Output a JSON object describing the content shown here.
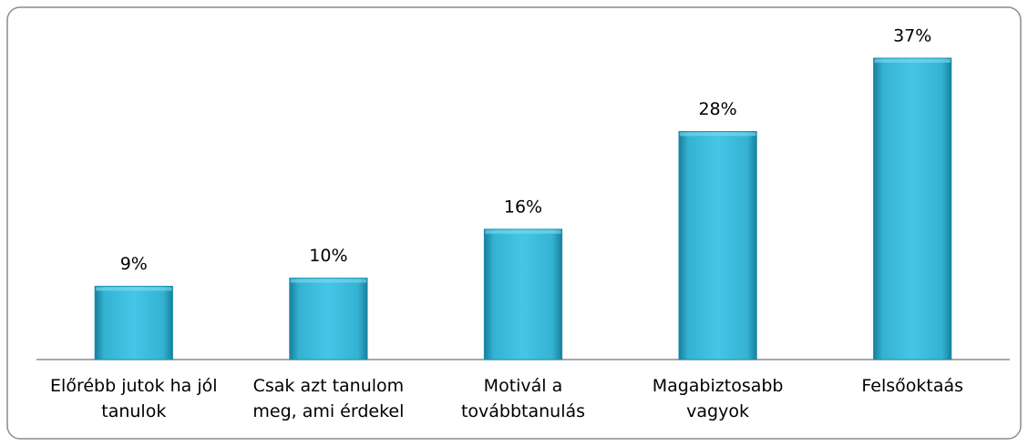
{
  "chart_data": {
    "type": "bar",
    "categories": [
      "Előrébb jutok ha jól tanulok",
      "Csak azt tanulom meg, ami érdekel",
      "Motivál a továbbtanulás",
      "Magabiztosabb vagyok",
      "Felsőoktaás"
    ],
    "values": [
      9,
      10,
      16,
      28,
      37
    ],
    "value_labels": [
      "9%",
      "10%",
      "16%",
      "28%",
      "37%"
    ],
    "color": "#3fbfdf",
    "ylim": [
      0,
      40
    ]
  }
}
